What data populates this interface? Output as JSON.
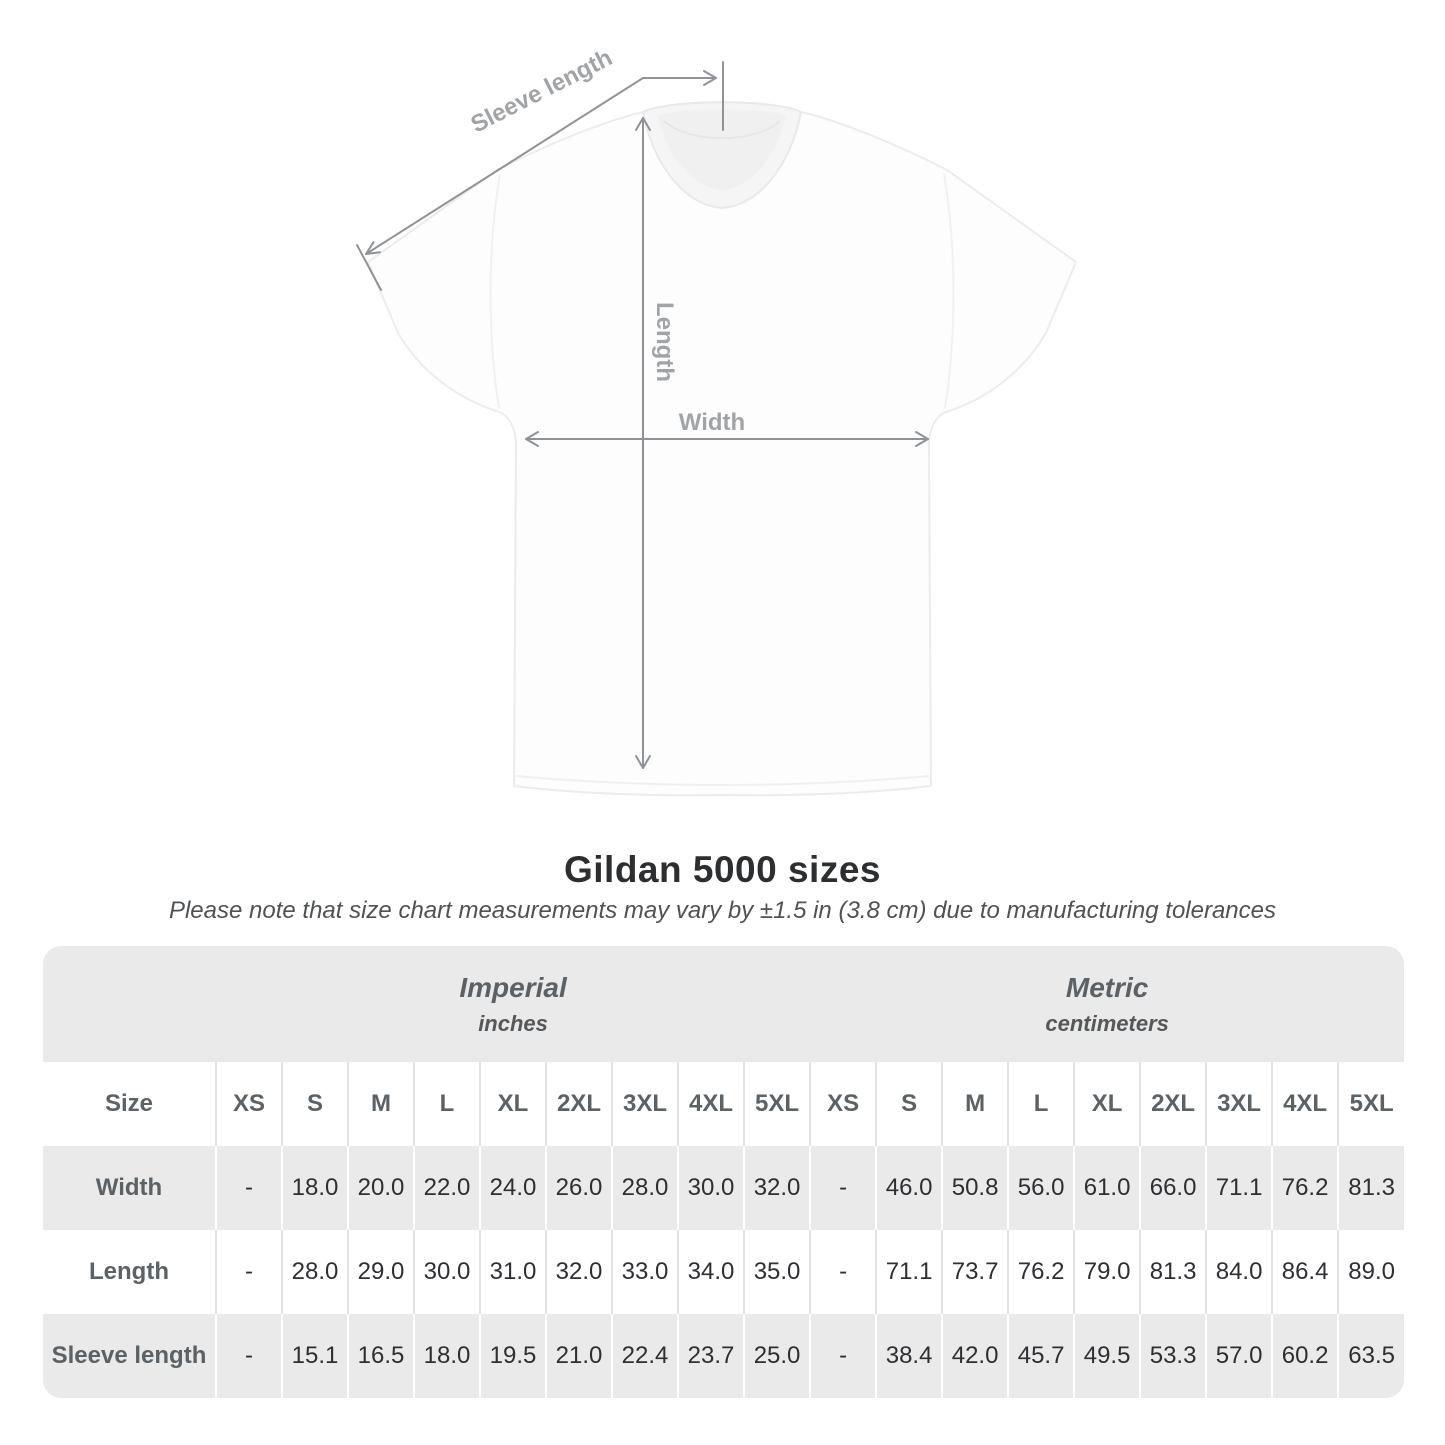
{
  "diagram": {
    "sleeve_label": "Sleeve length",
    "length_label": "Length",
    "width_label": "Width",
    "line_color": "#8f9296",
    "label_color": "#a1a4a7"
  },
  "heading": {
    "title": "Gildan 5000 sizes",
    "note": "Please note that size chart measurements may vary by ±1.5 in (3.8 cm) due to manufacturing tolerances"
  },
  "chart_data": {
    "type": "table",
    "title": "Gildan 5000 sizes",
    "note": "Please note that size chart measurements may vary by ±1.5 in (3.8 cm) due to manufacturing tolerances",
    "size_header": "Size",
    "unit_groups": [
      {
        "label": "Imperial",
        "unit": "inches"
      },
      {
        "label": "Metric",
        "unit": "centimeters"
      }
    ],
    "sizes": [
      "XS",
      "S",
      "M",
      "L",
      "XL",
      "2XL",
      "3XL",
      "4XL",
      "5XL"
    ],
    "rows": [
      {
        "label": "Width",
        "imperial": [
          "-",
          "18.0",
          "20.0",
          "22.0",
          "24.0",
          "26.0",
          "28.0",
          "30.0",
          "32.0"
        ],
        "metric": [
          "-",
          "46.0",
          "50.8",
          "56.0",
          "61.0",
          "66.0",
          "71.1",
          "76.2",
          "81.3"
        ]
      },
      {
        "label": "Length",
        "imperial": [
          "-",
          "28.0",
          "29.0",
          "30.0",
          "31.0",
          "32.0",
          "33.0",
          "34.0",
          "35.0"
        ],
        "metric": [
          "-",
          "71.1",
          "73.7",
          "76.2",
          "79.0",
          "81.3",
          "84.0",
          "86.4",
          "89.0"
        ]
      },
      {
        "label": "Sleeve length",
        "imperial": [
          "-",
          "15.1",
          "16.5",
          "18.0",
          "19.5",
          "21.0",
          "22.4",
          "23.7",
          "25.0"
        ],
        "metric": [
          "-",
          "38.4",
          "42.0",
          "45.7",
          "49.5",
          "53.3",
          "57.0",
          "60.2",
          "63.5"
        ]
      }
    ],
    "colors": {
      "stripe": "#eaeaea",
      "separator_on_white": "#e3e3e3",
      "separator_on_stripe": "#ffffff",
      "header_text": "#5b6165",
      "value_text": "#2d2f32",
      "title_text": "#2c2e30"
    },
    "layout": {
      "grid": false,
      "striped_rows": true,
      "rounded_corners": true
    }
  }
}
